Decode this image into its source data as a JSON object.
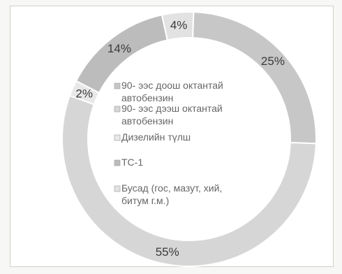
{
  "chart_data": {
    "type": "pie",
    "style": "donut",
    "start_angle_deg": 2,
    "categories": [
      "90- ээс доош октантай автобензин",
      "90- ээс дээш октантай автобензин",
      "Дизелийн түлш",
      "ТС-1",
      "Бусад (гос, мазут, хий, битум г.м.)"
    ],
    "values": [
      25,
      55,
      2,
      14,
      4
    ],
    "value_labels": [
      "25%",
      "55%",
      "2%",
      "14%",
      "4%"
    ],
    "legend_lines": [
      [
        "90- ээс доош октантай",
        "автобензин"
      ],
      [
        "90- ээс дээш октантай",
        "автобензин"
      ],
      [
        "Дизелийн түлш"
      ],
      [
        "ТС-1"
      ],
      [
        "Бусад (гос, мазут, хий,",
        "битум г.м.)"
      ]
    ],
    "colors": [
      "#c7c7c7",
      "#d6d6d6",
      "#e8e8e8",
      "#bcbcbc",
      "#e2e2e2"
    ],
    "legend_position": "center"
  }
}
